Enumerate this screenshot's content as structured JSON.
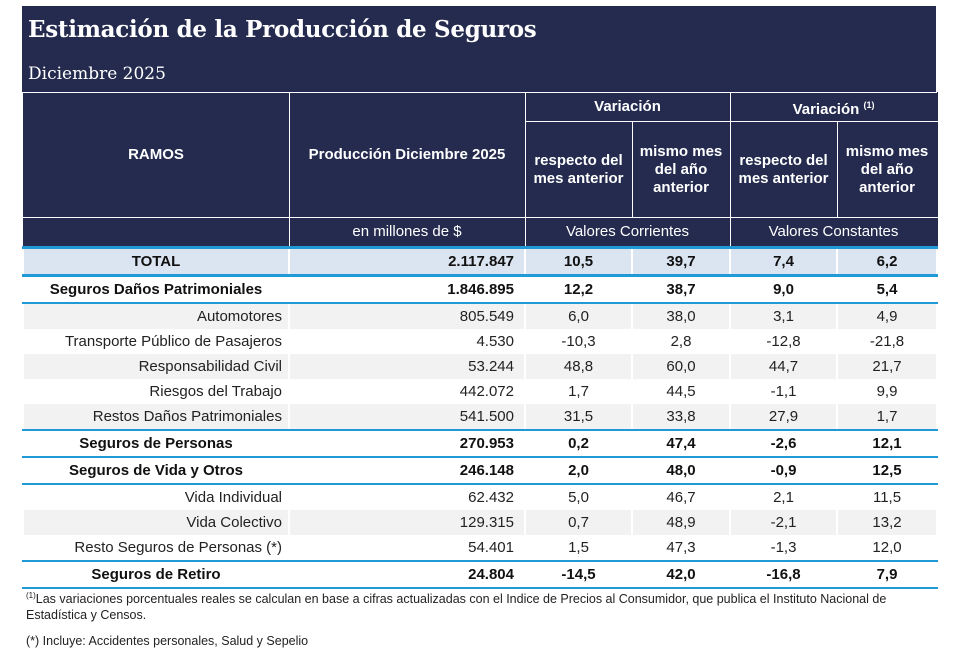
{
  "header": {
    "title": "Estimación de la Producción de Seguros",
    "subtitle": "Diciembre 2025"
  },
  "columns": {
    "ramos": "RAMOS",
    "produccion": "Producción Diciembre 2025",
    "produccion_unit": "en millones de $",
    "variacion": "Variación",
    "variacion_real": "Variación",
    "variacion_real_sup": "(1)",
    "resp_mes_anterior": "respecto del mes anterior",
    "mismo_mes": "mismo mes del año anterior",
    "resp_mes_anterior_2": "respecto del mes anterior",
    "mismo_mes_2": "mismo mes del año anterior",
    "valores_corrientes": "Valores Corrientes",
    "valores_constantes": "Valores Constantes"
  },
  "rows": [
    {
      "name": "TOTAL",
      "prod": "2.117.847",
      "v1": "10,5",
      "v2": "39,7",
      "v3": "7,4",
      "v4": "6,2"
    },
    {
      "name": "Seguros Daños Patrimoniales",
      "prod": "1.846.895",
      "v1": "12,2",
      "v2": "38,7",
      "v3": "9,0",
      "v4": "5,4"
    },
    {
      "name": "Automotores",
      "prod": "805.549",
      "v1": "6,0",
      "v2": "38,0",
      "v3": "3,1",
      "v4": "4,9"
    },
    {
      "name": "Transporte Público de Pasajeros",
      "prod": "4.530",
      "v1": "-10,3",
      "v2": "2,8",
      "v3": "-12,8",
      "v4": "-21,8"
    },
    {
      "name": "Responsabilidad Civil",
      "prod": "53.244",
      "v1": "48,8",
      "v2": "60,0",
      "v3": "44,7",
      "v4": "21,7"
    },
    {
      "name": "Riesgos del Trabajo",
      "prod": "442.072",
      "v1": "1,7",
      "v2": "44,5",
      "v3": "-1,1",
      "v4": "9,9"
    },
    {
      "name": "Restos Daños Patrimoniales",
      "prod": "541.500",
      "v1": "31,5",
      "v2": "33,8",
      "v3": "27,9",
      "v4": "1,7"
    },
    {
      "name": "Seguros de Personas",
      "prod": "270.953",
      "v1": "0,2",
      "v2": "47,4",
      "v3": "-2,6",
      "v4": "12,1"
    },
    {
      "name": "Seguros de Vida y Otros",
      "prod": "246.148",
      "v1": "2,0",
      "v2": "48,0",
      "v3": "-0,9",
      "v4": "12,5"
    },
    {
      "name": "Vida Individual",
      "prod": "62.432",
      "v1": "5,0",
      "v2": "46,7",
      "v3": "2,1",
      "v4": "11,5"
    },
    {
      "name": "Vida Colectivo",
      "prod": "129.315",
      "v1": "0,7",
      "v2": "48,9",
      "v3": "-2,1",
      "v4": "13,2"
    },
    {
      "name": "Resto Seguros de Personas (*)",
      "prod": "54.401",
      "v1": "1,5",
      "v2": "47,3",
      "v3": "-1,3",
      "v4": "12,0"
    },
    {
      "name": "Seguros de Retiro",
      "prod": "24.804",
      "v1": "-14,5",
      "v2": "42,0",
      "v3": "-16,8",
      "v4": "7,9"
    }
  ],
  "notes": {
    "note1_sup": "(1)",
    "note1": "Las variaciones porcentuales reales se calculan en base a cifras actualizadas con  el Indice de Precios al Consumidor, que publica el Instituto Nacional de Estadística y  Censos.",
    "note2": "(*) Incluye: Accidentes personales, Salud y Sepelio"
  }
}
